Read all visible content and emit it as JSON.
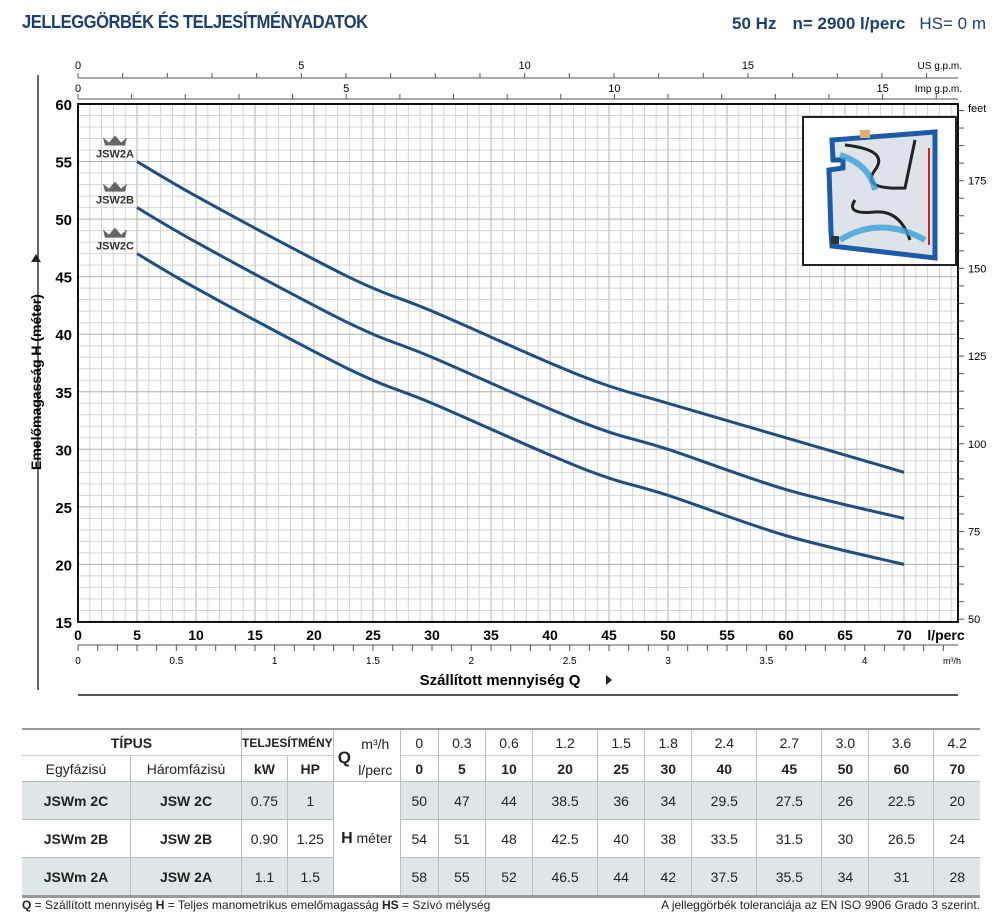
{
  "header": {
    "title": "JELLEGGÖRBÉK ÉS TELJESÍTMÉNYADATOK",
    "freq": "50 Hz",
    "speed": "n= 2900  l/perc",
    "hs": "HS= 0 m"
  },
  "chart_data": {
    "type": "line",
    "title": "JELLEGGÖRBÉK ÉS TELJESÍTMÉNYADATOK",
    "xlabel": "Szállított mennyiség Q",
    "ylabel": "Emelőmagasság H  (méter)",
    "xlim": [
      0,
      74
    ],
    "ylim": [
      15,
      60
    ],
    "x_ticks": [
      0,
      5,
      10,
      15,
      20,
      25,
      30,
      35,
      40,
      45,
      50,
      55,
      60,
      65,
      70
    ],
    "x_unit": "l/perc",
    "y_ticks": [
      15,
      20,
      25,
      30,
      35,
      40,
      45,
      50,
      55,
      60
    ],
    "secondary_axes": {
      "us_gpm": {
        "label": "US g.p.m.",
        "ticks": [
          0,
          5,
          10,
          15
        ]
      },
      "imp_gpm": {
        "label": "Imp g.p.m.",
        "ticks": [
          0,
          5,
          10,
          15
        ]
      },
      "m3h": {
        "label": "m³/h",
        "ticks": [
          "0",
          "0.5",
          "1",
          "1.5",
          "2",
          "2.5",
          "3",
          "3.5",
          "4"
        ]
      },
      "feet": {
        "label": "feet",
        "ticks": [
          50,
          75,
          100,
          125,
          150,
          175
        ]
      }
    },
    "grid": true,
    "x": [
      5,
      10,
      20,
      25,
      30,
      40,
      45,
      50,
      60,
      70
    ],
    "series": [
      {
        "name": "JSW2A",
        "values": [
          55,
          52,
          46.5,
          44,
          42,
          37.5,
          35.5,
          34,
          31,
          28
        ]
      },
      {
        "name": "JSW2B",
        "values": [
          51,
          48,
          42.5,
          40,
          38,
          33.5,
          31.5,
          30,
          26.5,
          24
        ]
      },
      {
        "name": "JSW2C",
        "values": [
          47,
          44,
          38.5,
          36,
          34,
          29.5,
          27.5,
          26,
          22.5,
          20
        ]
      }
    ],
    "color": "#1f4e82"
  },
  "table": {
    "tipus": "TÍPUS",
    "teljesitmeny": "TELJESÍTMÉNY",
    "egy": "Egyfázisú",
    "harom": "Háromfázisú",
    "kw": "kW",
    "hp": "HP",
    "q": "Q",
    "m3h": "m³/h",
    "lperc": "l/perc",
    "h": "H",
    "meter": "méter",
    "m3h_values": [
      "0",
      "0.3",
      "0.6",
      "1.2",
      "1.5",
      "1.8",
      "2.4",
      "2.7",
      "3.0",
      "3.6",
      "4.2"
    ],
    "lperc_values": [
      "0",
      "5",
      "10",
      "20",
      "25",
      "30",
      "40",
      "45",
      "50",
      "60",
      "70"
    ],
    "rows": [
      {
        "egy": "JSWm 2C",
        "harom": "JSW 2C",
        "kw": "0.75",
        "hp": "1",
        "h": [
          "50",
          "47",
          "44",
          "38.5",
          "36",
          "34",
          "29.5",
          "27.5",
          "26",
          "22.5",
          "20"
        ]
      },
      {
        "egy": "JSWm 2B",
        "harom": "JSW 2B",
        "kw": "0.90",
        "hp": "1.25",
        "h": [
          "54",
          "51",
          "48",
          "42.5",
          "40",
          "38",
          "33.5",
          "31.5",
          "30",
          "26.5",
          "24"
        ]
      },
      {
        "egy": "JSWm 2A",
        "harom": "JSW 2A",
        "kw": "1.1",
        "hp": "1.5",
        "h": [
          "58",
          "55",
          "52",
          "46.5",
          "44",
          "42",
          "37.5",
          "35.5",
          "34",
          "31",
          "28"
        ]
      }
    ]
  },
  "footer": {
    "legend_q": "Q",
    "legend_q_text": " = Szállított mennyiség  ",
    "legend_h": "H",
    "legend_h_text": " = Teljes manometrikus emelőmagasság  ",
    "legend_hs": "HS",
    "legend_hs_text": " = Szívó mélység",
    "tolerance": "A jelleggörbék toleranciája az EN ISO 9906 Grado 3 szerint."
  }
}
